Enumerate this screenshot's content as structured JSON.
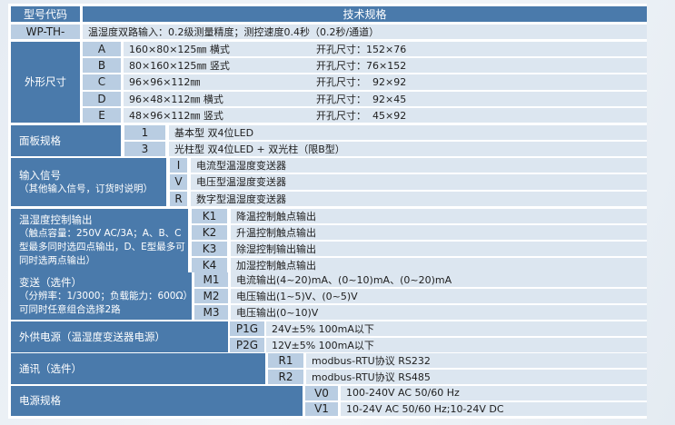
{
  "header": {
    "model_code": "型号代码",
    "tech_spec": "技术规格"
  },
  "model": {
    "code": "WP-TH-",
    "desc": "温湿度双路输入：0.2级测量精度；测控速度0.4秒（0.2秒/通道）"
  },
  "groups": {
    "size": {
      "label": "外形尺寸",
      "rows": [
        {
          "code": "A",
          "desc": "160×80×125㎜ 横式",
          "cut": "开孔尺寸：152×76"
        },
        {
          "code": "B",
          "desc": "80×160×125㎜ 竖式",
          "cut": "开孔尺寸：76×152"
        },
        {
          "code": "C",
          "desc": "96×96×112㎜",
          "cut": "开孔尺寸：  92×92"
        },
        {
          "code": "D",
          "desc": "96×48×112㎜ 横式",
          "cut": "开孔尺寸：  92×45"
        },
        {
          "code": "E",
          "desc": "48×96×112㎜ 竖式",
          "cut": "开孔尺寸：  45×92"
        }
      ]
    },
    "panel": {
      "label": "面板规格",
      "rows": [
        {
          "code": "1",
          "desc": "基本型 双4位LED"
        },
        {
          "code": "3",
          "desc": "光柱型 双4位LED + 双光柱（限B型）"
        }
      ]
    },
    "input": {
      "label": "输入信号",
      "sub": "（其他输入信号，订货时说明）",
      "rows": [
        {
          "code": "I",
          "desc": "电流型温湿度变送器"
        },
        {
          "code": "V",
          "desc": "电压型温湿度变送器"
        },
        {
          "code": "R",
          "desc": "数字型温湿度变送器"
        }
      ]
    },
    "control": {
      "label": "温湿度控制输出",
      "sub": "（触点容量：250V AC/3A；A、B、C型最多同时选四点输出，D、E型最多可同时选两点输出）",
      "rows": [
        {
          "code": "K1",
          "desc": "降温控制触点输出"
        },
        {
          "code": "K2",
          "desc": "升温控制触点输出"
        },
        {
          "code": "K3",
          "desc": "除湿控制输出输出"
        },
        {
          "code": "K4",
          "desc": "加湿控制触点输出"
        }
      ]
    },
    "transmit": {
      "label": "变送（选件）",
      "sub": "（分辨率：1/3000；负载能力：600Ω）",
      "sub2": "可同时任意组合选择2路",
      "rows": [
        {
          "code": "M1",
          "desc": "电流输出(4~20)mA、(0~10)mA、(0~20)mA"
        },
        {
          "code": "M2",
          "desc": "电压输出(1~5)V、(0~5)V"
        },
        {
          "code": "M3",
          "desc": "电压输出(0~10)V"
        }
      ]
    },
    "supply": {
      "label": "外供电源（温湿度变送器电源）",
      "rows": [
        {
          "code": "P1G",
          "desc": "24V±5% 100mA以下"
        },
        {
          "code": "P2G",
          "desc": "12V±5% 100mA以下"
        }
      ]
    },
    "comm": {
      "label": "通讯（选件）",
      "rows": [
        {
          "code": "R1",
          "desc": "modbus-RTU协议 RS232"
        },
        {
          "code": "R2",
          "desc": "modbus-RTU协议 RS485"
        }
      ]
    },
    "power": {
      "label": "电源规格",
      "rows": [
        {
          "code": "V0",
          "desc": "100-240V AC 50/60 Hz"
        },
        {
          "code": "V1",
          "desc": "10-24V AC 50/60 Hz;10-24V DC"
        }
      ]
    }
  },
  "colors": {
    "header_bg": "#4a7aab",
    "code_bg": "#b9cde2",
    "desc_bg": "#dce6f0"
  }
}
